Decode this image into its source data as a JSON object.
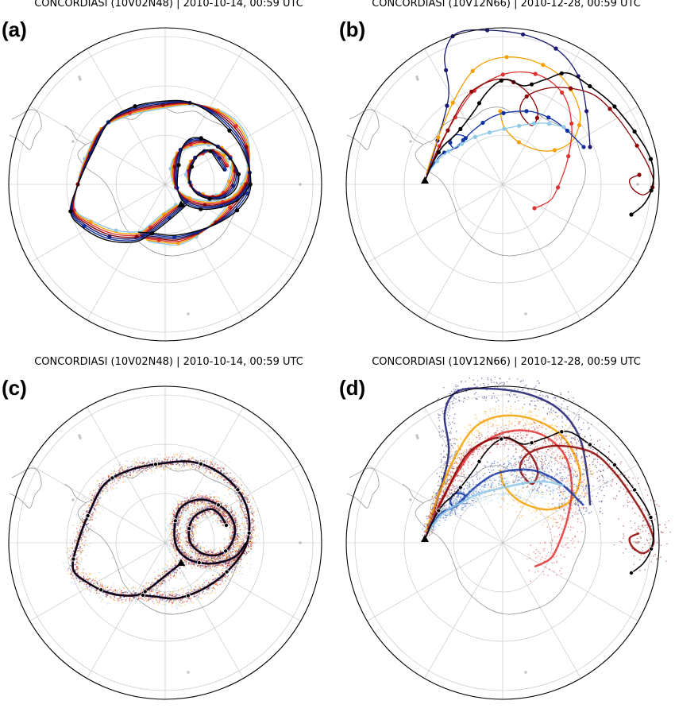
{
  "panels": [
    {
      "label": "(a)",
      "title": "CONCORDIASI (10V02N48) | 2010-10-14, 00:59 UTC",
      "style": "lines"
    },
    {
      "label": "(b)",
      "title": "CONCORDIASI (10V12N66) | 2010-12-28, 00:59 UTC",
      "style": "lines"
    },
    {
      "label": "(c)",
      "title": "CONCORDIASI (10V02N48) | 2010-10-14, 00:59 UTC",
      "style": "clouds"
    },
    {
      "label": "(d)",
      "title": "CONCORDIASI (10V12N66) | 2010-12-28, 00:59 UTC",
      "style": "clouds"
    }
  ],
  "colors": {
    "black": "#000000",
    "dark_red": "#8b0000",
    "red": "#e03030",
    "orange": "#f5a000",
    "navy": "#1a1a6e",
    "blue": "#1030a0",
    "light_blue": "#8ec8e8",
    "grid": "#c0c0c0",
    "coast": "#888888"
  }
}
